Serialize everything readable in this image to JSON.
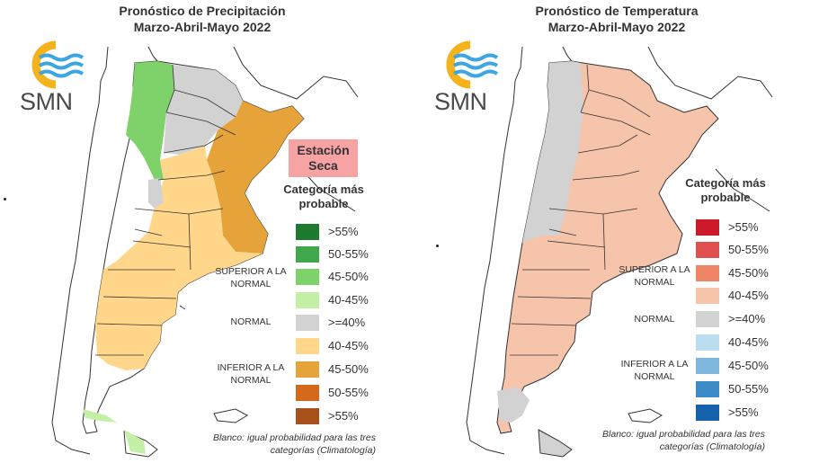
{
  "precip": {
    "title_line1": "Pronóstico de Precipitación",
    "title_line2": "Marzo-Abril-Mayo 2022",
    "logo_text": "SMN",
    "dry_season": "Estación Seca",
    "legend_title": "Categoría más probable",
    "legend_items": [
      {
        "label": ">55%",
        "color": "#1e7a2e"
      },
      {
        "label": "50-55%",
        "color": "#3ea84a"
      },
      {
        "label": "45-50%",
        "color": "#7fd169"
      },
      {
        "label": "40-45%",
        "color": "#c4f0a6"
      },
      {
        "label": ">=40%",
        "color": "#d2d2d2"
      },
      {
        "label": "40-45%",
        "color": "#ffd68a"
      },
      {
        "label": "45-50%",
        "color": "#e6a33a"
      },
      {
        "label": "50-55%",
        "color": "#d4691c"
      },
      {
        "label": ">55%",
        "color": "#a8501a"
      }
    ],
    "group_superior": "SUPERIOR A LA NORMAL",
    "group_normal": "NORMAL",
    "group_inferior": "INFERIOR A LA NORMAL",
    "footnote": "Blanco: igual probabilidad para las tres categorías (Climatología)"
  },
  "temp": {
    "title_line1": "Pronóstico de Temperatura",
    "title_line2": "Marzo-Abril-Mayo 2022",
    "logo_text": "SMN",
    "legend_title": "Categoría más probable",
    "legend_items": [
      {
        "label": ">55%",
        "color": "#cc1a2a"
      },
      {
        "label": "50-55%",
        "color": "#e05050"
      },
      {
        "label": "45-50%",
        "color": "#ef8466"
      },
      {
        "label": "40-45%",
        "color": "#f6c3ab"
      },
      {
        "label": ">=40%",
        "color": "#d2d2d2"
      },
      {
        "label": "40-45%",
        "color": "#bcdcf0"
      },
      {
        "label": "45-50%",
        "color": "#7fb8dc"
      },
      {
        "label": "50-55%",
        "color": "#3d8cc8"
      },
      {
        "label": ">55%",
        "color": "#1563ad"
      }
    ],
    "group_superior": "SUPERIOR A LA NORMAL",
    "group_normal": "NORMAL",
    "group_inferior": "INFERIOR A LA NORMAL",
    "footnote": "Blanco: igual probabilidad para las tres categorías (Climatología)"
  },
  "colors": {
    "logo_sun": "#f6b21a",
    "logo_waves": "#3ba6e0",
    "border": "#333333"
  }
}
